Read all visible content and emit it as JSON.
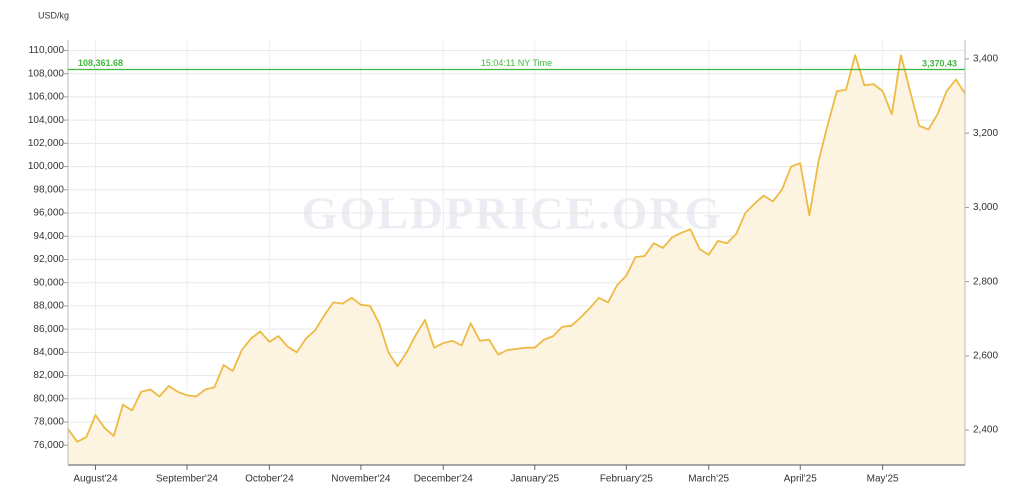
{
  "chart_data": {
    "type": "area",
    "y_label": "USD/kg",
    "watermark": "GOLDPRICE.ORG",
    "categories": [
      null,
      null,
      null,
      "August'24",
      null,
      null,
      null,
      null,
      null,
      null,
      null,
      null,
      null,
      "September'24",
      null,
      null,
      null,
      null,
      null,
      null,
      null,
      null,
      "October'24",
      null,
      null,
      null,
      null,
      null,
      null,
      null,
      null,
      null,
      "November'24",
      null,
      null,
      null,
      null,
      null,
      null,
      null,
      null,
      "December'24",
      null,
      null,
      null,
      null,
      null,
      null,
      null,
      null,
      null,
      "January'25",
      null,
      null,
      null,
      null,
      null,
      null,
      null,
      null,
      null,
      "February'25",
      null,
      null,
      null,
      null,
      null,
      null,
      null,
      null,
      "March'25",
      null,
      null,
      null,
      null,
      null,
      null,
      null,
      null,
      null,
      "April'25",
      null,
      null,
      null,
      null,
      null,
      null,
      null,
      null,
      "May'25",
      null,
      null,
      null,
      null,
      null,
      null,
      null,
      null,
      null
    ],
    "series": [
      {
        "color": "#edbb45",
        "fill_color": "#fdf3e1",
        "values": [
          77400,
          76300,
          76700,
          78600,
          77500,
          76800,
          79500,
          79000,
          80600,
          80800,
          80200,
          81100,
          80600,
          80300,
          80200,
          80800,
          81000,
          82900,
          82400,
          84200,
          85200,
          85800,
          84900,
          85400,
          84500,
          84000,
          85200,
          85900,
          87200,
          88300,
          88200,
          88700,
          88100,
          88000,
          86500,
          84000,
          82800,
          84000,
          85500,
          86800,
          84400,
          84800,
          85000,
          84600,
          86500,
          85000,
          85100,
          83800,
          84200,
          84300,
          84400,
          84400,
          85100,
          85400,
          86200,
          86300,
          87000,
          87800,
          88700,
          88300,
          89800,
          90600,
          92200,
          92300,
          93400,
          93000,
          93900,
          94300,
          94600,
          92900,
          92400,
          93600,
          93400,
          94200,
          96000,
          96800,
          97500,
          97000,
          98000,
          100000,
          100300,
          95800,
          100500,
          103600,
          106500,
          106600,
          109600,
          107000,
          107100,
          106500,
          104500,
          109600,
          106500,
          103500,
          103200,
          104500,
          106500,
          107500,
          106300
        ]
      }
    ],
    "ylim": [
      74300,
      110900
    ],
    "yticks": [
      {
        "value": 76000,
        "label": "76,000"
      },
      {
        "value": 78000,
        "label": "78,000"
      },
      {
        "value": 80000,
        "label": "80,000"
      },
      {
        "value": 82000,
        "label": "82,000"
      },
      {
        "value": 84000,
        "label": "84,000"
      },
      {
        "value": 86000,
        "label": "86,000"
      },
      {
        "value": 88000,
        "label": "88,000"
      },
      {
        "value": 90000,
        "label": "90,000"
      },
      {
        "value": 92000,
        "label": "92,000"
      },
      {
        "value": 94000,
        "label": "94,000"
      },
      {
        "value": 96000,
        "label": "96,000"
      },
      {
        "value": 98000,
        "label": "98,000"
      },
      {
        "value": 100000,
        "label": "100,000"
      },
      {
        "value": 102000,
        "label": "102,000"
      },
      {
        "value": 104000,
        "label": "104,000"
      },
      {
        "value": 106000,
        "label": "106,000"
      },
      {
        "value": 108000,
        "label": "108,000"
      },
      {
        "value": 110000,
        "label": "110,000"
      }
    ],
    "y2lim": [
      2306,
      3451
    ],
    "y2ticks": [
      {
        "value": 2400,
        "label": "2,400"
      },
      {
        "value": 2600,
        "label": "2,600"
      },
      {
        "value": 2800,
        "label": "2,800"
      },
      {
        "value": 3000,
        "label": "3,000"
      },
      {
        "value": 3200,
        "label": "3,200"
      },
      {
        "value": 3400,
        "label": "3,400"
      }
    ],
    "grid": true,
    "reference_line": {
      "y": {
        "value": 108361.68,
        "label": "108,361.68"
      },
      "y2": {
        "value": 3370.43,
        "label": "3,370.43"
      },
      "time": "15:04:11 NY Time",
      "color": "#3db83d"
    }
  }
}
